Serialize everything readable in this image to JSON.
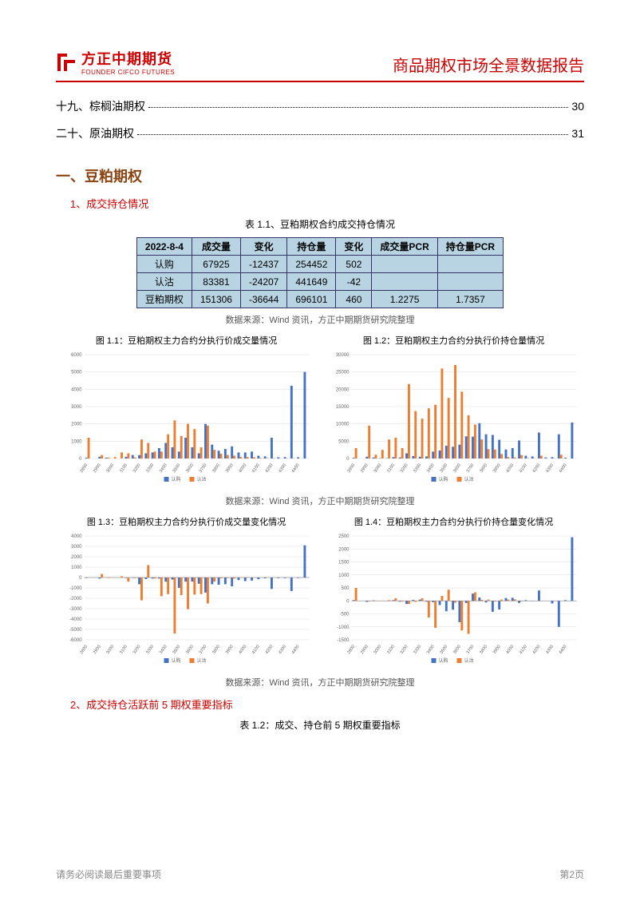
{
  "logo": {
    "cn": "方正中期期货",
    "en": "FOUNDER CIFCO FUTURES"
  },
  "header_title": "商品期权市场全景数据报告",
  "brand_color": "#c00",
  "toc": [
    {
      "label": "十九、棕榈油期权",
      "page": "30"
    },
    {
      "label": "二十、原油期权",
      "page": "31"
    }
  ],
  "section1": {
    "title": "一、豆粕期权",
    "sub1": "1、成交持仓情况",
    "table_caption": "表 1.1、豆粕期权合约成交持仓情况",
    "table": {
      "headers": [
        "2022-8-4",
        "成交量",
        "变化",
        "持仓量",
        "变化",
        "成交量PCR",
        "持仓量PCR"
      ],
      "rows": [
        [
          "认购",
          "67925",
          "-12437",
          "254452",
          "502",
          "",
          ""
        ],
        [
          "认沽",
          "83381",
          "-24207",
          "441649",
          "-42",
          "",
          ""
        ],
        [
          "豆粕期权",
          "151306",
          "-36644",
          "696101",
          "460",
          "1.2275",
          "1.7357"
        ]
      ]
    },
    "source": "数据来源：Wind 资讯，方正中期期货研究院整理",
    "chart11_title": "图 1.1：豆粕期权主力合约分执行价成交量情况",
    "chart12_title": "图 1.2：豆粕期权主力合约分执行价持仓量情况",
    "chart13_title": "图 1.3：豆粕期权主力合约分执行价成交量变化情况",
    "chart14_title": "图 1.4：豆粕期权主力合约分执行价持仓量变化情况",
    "sub2": "2、成交持仓活跃前 5 期权重要指标",
    "table2_caption": "表 1.2：成交、持仓前 5 期权重要指标",
    "legend_call": "认购",
    "legend_put": "认沽",
    "color_call": "#4472c4",
    "color_put": "#ed7d31",
    "xticks": [
      "2800",
      "2900",
      "3000",
      "3100",
      "3200",
      "3300",
      "3400",
      "3500",
      "3600",
      "3700",
      "3800",
      "3900",
      "4000",
      "4100",
      "4200",
      "4300",
      "4400"
    ],
    "chart11": {
      "ylim": [
        0,
        6000
      ],
      "ytick_step": 1000,
      "call": [
        50,
        0,
        100,
        50,
        0,
        0,
        100,
        200,
        200,
        300,
        350,
        600,
        900,
        650,
        400,
        1200,
        650,
        300,
        2000,
        800,
        450,
        550,
        700,
        350,
        350,
        400,
        160,
        120,
        1200,
        70,
        80,
        4200,
        70,
        5000
      ],
      "put": [
        1200,
        0,
        200,
        50,
        80,
        350,
        300,
        60,
        1100,
        900,
        400,
        400,
        1400,
        2200,
        1300,
        2000,
        1700,
        650,
        1900,
        500,
        280,
        200,
        160,
        90,
        80,
        70,
        30,
        20,
        20,
        10,
        10,
        10,
        0,
        0
      ]
    },
    "chart12": {
      "ylim": [
        0,
        30000
      ],
      "ytick_step": 5000,
      "call": [
        200,
        0,
        500,
        300,
        100,
        100,
        400,
        300,
        1500,
        700,
        500,
        600,
        2000,
        2300,
        3700,
        3400,
        4000,
        6400,
        6300,
        10200,
        7000,
        6800,
        5400,
        2600,
        3000,
        5200,
        800,
        600,
        7500,
        300,
        400,
        7000,
        250,
        10400
      ],
      "put": [
        3000,
        0,
        9500,
        1100,
        2500,
        5500,
        6000,
        3000,
        21500,
        13700,
        11500,
        14500,
        15500,
        26000,
        17500,
        27000,
        19300,
        12500,
        9800,
        5500,
        2700,
        2600,
        1300,
        400,
        300,
        1000,
        100,
        60,
        800,
        40,
        40,
        1100,
        0,
        0
      ]
    },
    "chart13": {
      "ylim": [
        -6000,
        4000
      ],
      "ytick_step": 1000,
      "call": [
        -50,
        0,
        -100,
        10,
        0,
        0,
        -50,
        -40,
        -650,
        -150,
        -100,
        -100,
        -400,
        -200,
        -1000,
        -400,
        -400,
        -600,
        -1450,
        -650,
        -700,
        -650,
        -850,
        -250,
        -350,
        -300,
        -160,
        -80,
        -1100,
        -60,
        -60,
        -1300,
        -50,
        3100
      ],
      "put": [
        10,
        0,
        340,
        -50,
        15,
        120,
        -400,
        -60,
        -2200,
        1200,
        -100,
        -1800,
        -1600,
        -5400,
        -1700,
        -3050,
        -1650,
        -1600,
        -2500,
        -400,
        -80,
        -60,
        -100,
        -35,
        -25,
        -25,
        -10,
        -5,
        -5,
        0,
        0,
        0,
        0,
        0
      ]
    },
    "chart14": {
      "ylim": [
        -1500,
        2500
      ],
      "ytick_step": 500,
      "call": [
        30,
        0,
        -40,
        20,
        0,
        0,
        30,
        -30,
        -120,
        40,
        50,
        -30,
        -50,
        -160,
        -400,
        -340,
        -820,
        -80,
        280,
        130,
        -60,
        -420,
        -330,
        110,
        120,
        -80,
        30,
        -10,
        400,
        0,
        -100,
        -1000,
        30,
        2450
      ],
      "put": [
        500,
        0,
        -20,
        10,
        10,
        30,
        100,
        -20,
        -120,
        -40,
        100,
        -640,
        -1040,
        190,
        430,
        -70,
        -1140,
        -1270,
        330,
        40,
        50,
        -20,
        50,
        50,
        60,
        -20,
        0,
        0,
        0,
        0,
        0,
        0,
        0,
        0
      ]
    }
  },
  "footer": {
    "left": "请务必阅读最后重要事项",
    "right": "第2页"
  }
}
